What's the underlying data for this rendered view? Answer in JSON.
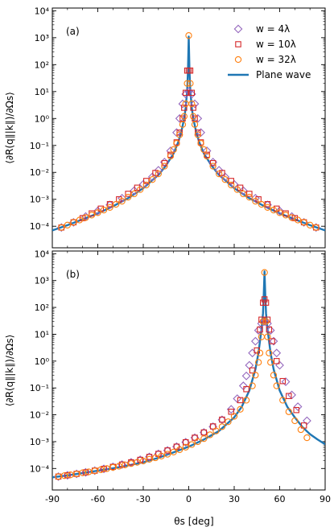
{
  "colors": {
    "w4": "#9467bd",
    "w10": "#d62728",
    "w32": "#ff7f0e",
    "plane": "#1f77b4"
  },
  "chart_data": [
    {
      "type": "scatter",
      "panel_label": "(a)",
      "xlabel": "θs [deg]",
      "ylabel": "⟨∂R(q∥|k∥)/∂Ωs⟩",
      "xlim": [
        -90,
        90
      ],
      "ylim_log10": [
        -4.8,
        4.1
      ],
      "yscale": "log",
      "xticks": [
        "-90",
        "-60",
        "-30",
        "0",
        "30",
        "60",
        "90"
      ],
      "yticks": [
        "10⁻⁴",
        "10⁻³",
        "10⁻²",
        "10⁻¹",
        "10⁰",
        "10¹",
        "10²",
        "10³",
        "10⁴"
      ],
      "legend_position": "top-right",
      "peak_deg": 0,
      "series": [
        {
          "name": "w = 4λ",
          "marker": "diamond",
          "x": [
            -84.0,
            -76.0,
            -68.0,
            -60.0,
            -52.0,
            -44.0,
            -36.0,
            -30.0,
            -24.0,
            -20.0,
            -16.0,
            -12.0,
            -8.0,
            -6.0,
            -4.0,
            -2.0,
            0.0,
            2.0,
            4.0,
            6.0,
            8.0,
            12.0,
            16.0,
            20.0,
            24.0,
            30.0,
            36.0,
            44.0,
            52.0,
            60.0,
            68.0,
            76.0,
            84.0
          ],
          "y": [
            9e-05,
            0.00014,
            0.00023,
            0.00037,
            0.00062,
            0.0011,
            0.0021,
            0.0036,
            0.0068,
            0.012,
            0.024,
            0.063,
            0.3,
            1.0,
            3.5,
            8.0,
            10.0,
            8.0,
            3.5,
            1.0,
            0.3,
            0.063,
            0.024,
            0.012,
            0.0068,
            0.0036,
            0.0021,
            0.0011,
            0.00062,
            0.00037,
            0.00023,
            0.00014,
            9e-05
          ]
        },
        {
          "name": "w = 10λ",
          "marker": "square",
          "x": [
            -84.0,
            -76.0,
            -70.0,
            -64.0,
            -58.0,
            -52.0,
            -46.0,
            -40.0,
            -34.0,
            -28.0,
            -22.0,
            -16.0,
            -12.0,
            -8.0,
            -6.0,
            -4.0,
            -3.0,
            -2.0,
            -1.0,
            0.0,
            1.0,
            2.0,
            3.0,
            4.0,
            6.0,
            8.0,
            12.0,
            16.0,
            22.0,
            28.0,
            34.0,
            40.0,
            46.0,
            52.0,
            58.0,
            64.0,
            70.0,
            76.0,
            84.0
          ],
          "y": [
            9e-05,
            0.00014,
            0.0002,
            0.0003,
            0.00045,
            0.00066,
            0.001,
            0.0016,
            0.0027,
            0.0048,
            0.0095,
            0.022,
            0.045,
            0.13,
            0.3,
            1.0,
            2.5,
            9.0,
            60.0,
            60.0,
            60.0,
            9.0,
            2.5,
            1.0,
            0.3,
            0.13,
            0.045,
            0.022,
            0.0095,
            0.0048,
            0.0027,
            0.0016,
            0.001,
            0.00066,
            0.00045,
            0.0003,
            0.0002,
            0.00014,
            9e-05
          ]
        },
        {
          "name": "w = 32λ",
          "marker": "circle",
          "x": [
            -84.0,
            -80.0,
            -76.0,
            -72.0,
            -68.0,
            -64.0,
            -60.0,
            -56.0,
            -52.0,
            -48.0,
            -44.0,
            -40.0,
            -36.0,
            -32.0,
            -28.0,
            -24.0,
            -20.0,
            -16.0,
            -12.0,
            -10.0,
            -8.0,
            -6.0,
            -4.0,
            -3.0,
            -2.0,
            -1.0,
            0.0,
            1.0,
            2.0,
            3.0,
            4.0,
            6.0,
            8.0,
            10.0,
            12.0,
            16.0,
            20.0,
            24.0,
            28.0,
            32.0,
            36.0,
            40.0,
            44.0,
            48.0,
            52.0,
            56.0,
            60.0,
            64.0,
            68.0,
            72.0,
            76.0,
            80.0,
            84.0
          ],
          "y": [
            9e-05,
            0.00011,
            0.00014,
            0.00017,
            0.00021,
            0.00026,
            0.00032,
            0.0004,
            0.0005,
            0.00065,
            0.00085,
            0.0012,
            0.0016,
            0.0023,
            0.0034,
            0.0054,
            0.0088,
            0.017,
            0.04,
            0.07,
            0.12,
            0.25,
            0.6,
            1.2,
            3.5,
            20.0,
            1200.0,
            20.0,
            3.5,
            1.2,
            0.6,
            0.25,
            0.12,
            0.07,
            0.04,
            0.017,
            0.0088,
            0.0054,
            0.0034,
            0.0023,
            0.0016,
            0.0012,
            0.00085,
            0.00065,
            0.0005,
            0.0004,
            0.00032,
            0.00026,
            0.00021,
            0.00017,
            0.00014,
            0.00011,
            9e-05
          ]
        },
        {
          "name": "Plane wave",
          "marker": "line",
          "x": [
            -90.0,
            -80.0,
            -70.0,
            -60.0,
            -50.0,
            -40.0,
            -30.0,
            -20.0,
            -15.0,
            -10.0,
            -7.0,
            -5.0,
            -3.0,
            -2.0,
            -1.0,
            -0.5,
            0.0,
            0.5,
            1.0,
            2.0,
            3.0,
            5.0,
            7.0,
            10.0,
            15.0,
            20.0,
            30.0,
            40.0,
            50.0,
            60.0,
            70.0,
            80.0,
            90.0
          ],
          "y": [
            7e-05,
            0.00011,
            0.00018,
            0.0003,
            0.00055,
            0.0011,
            0.0026,
            0.008,
            0.018,
            0.05,
            0.13,
            0.3,
            1.0,
            2.5,
            12.0,
            60.0,
            1100.0,
            60.0,
            12.0,
            2.5,
            1.0,
            0.3,
            0.13,
            0.05,
            0.018,
            0.008,
            0.0026,
            0.0011,
            0.00055,
            0.0003,
            0.00018,
            0.00011,
            7e-05
          ]
        }
      ]
    },
    {
      "type": "scatter",
      "panel_label": "(b)",
      "xlabel": "θs [deg]",
      "ylabel": "⟨∂R(q∥|k∥)/∂Ωs⟩",
      "xlim": [
        -90,
        90
      ],
      "ylim_log10": [
        -4.8,
        4.1
      ],
      "yscale": "log",
      "xticks": [
        "-90",
        "-60",
        "-30",
        "0",
        "30",
        "60",
        "90"
      ],
      "yticks": [
        "10⁻⁴",
        "10⁻³",
        "10⁻²",
        "10⁻¹",
        "10⁰",
        "10¹",
        "10²",
        "10³",
        "10⁴"
      ],
      "peak_deg": 50,
      "series": [
        {
          "name": "w = 4λ",
          "marker": "diamond",
          "x": [
            -86.0,
            -80.0,
            -74.0,
            -68.0,
            -62.0,
            -56.0,
            -50.0,
            -44.0,
            -38.0,
            -32.0,
            -26.0,
            -20.0,
            -14.0,
            -8.0,
            -2.0,
            4.0,
            10.0,
            16.0,
            22.0,
            28.0,
            32.0,
            36.0,
            38.0,
            40.0,
            42.0,
            44.0,
            46.0,
            48.0,
            50.0,
            52.0,
            54.0,
            56.0,
            58.0,
            60.0,
            64.0,
            68.0,
            72.0,
            78.0
          ],
          "y": [
            5e-05,
            5.6e-05,
            6.3e-05,
            7.2e-05,
            8.3e-05,
            9.7e-05,
            0.000115,
            0.00014,
            0.00017,
            0.00021,
            0.00027,
            0.00035,
            0.00047,
            0.00065,
            0.00095,
            0.0014,
            0.0022,
            0.0036,
            0.0065,
            0.016,
            0.04,
            0.12,
            0.28,
            0.7,
            2.0,
            5.5,
            14.0,
            25.0,
            30.0,
            25.0,
            14.0,
            5.5,
            2.0,
            0.7,
            0.17,
            0.055,
            0.02,
            0.006
          ]
        },
        {
          "name": "w = 10λ",
          "marker": "square",
          "x": [
            -86.0,
            -80.0,
            -74.0,
            -68.0,
            -62.0,
            -56.0,
            -50.0,
            -44.0,
            -38.0,
            -32.0,
            -26.0,
            -20.0,
            -14.0,
            -8.0,
            -2.0,
            4.0,
            10.0,
            16.0,
            22.0,
            28.0,
            34.0,
            38.0,
            42.0,
            45.0,
            47.0,
            48.0,
            49.0,
            50.0,
            51.0,
            52.0,
            53.0,
            55.0,
            58.0,
            62.0,
            66.0,
            71.0,
            76.0
          ],
          "y": [
            5e-05,
            5.6e-05,
            6.3e-05,
            7.2e-05,
            8.3e-05,
            9.7e-05,
            0.000115,
            0.00014,
            0.00017,
            0.00021,
            0.00027,
            0.00035,
            0.00047,
            0.00065,
            0.00095,
            0.0014,
            0.0022,
            0.0037,
            0.0066,
            0.013,
            0.035,
            0.09,
            0.45,
            2.5,
            15.0,
            35.0,
            150.0,
            200.0,
            150.0,
            35.0,
            15.0,
            5.5,
            1.0,
            0.18,
            0.05,
            0.015,
            0.004
          ]
        },
        {
          "name": "w = 32λ",
          "marker": "circle",
          "x": [
            -86.0,
            -82.0,
            -78.0,
            -74.0,
            -70.0,
            -66.0,
            -62.0,
            -58.0,
            -54.0,
            -50.0,
            -46.0,
            -42.0,
            -38.0,
            -34.0,
            -30.0,
            -26.0,
            -22.0,
            -18.0,
            -14.0,
            -10.0,
            -6.0,
            -2.0,
            2.0,
            6.0,
            10.0,
            14.0,
            18.0,
            22.0,
            26.0,
            30.0,
            34.0,
            38.0,
            42.0,
            44.0,
            46.0,
            47.0,
            48.0,
            49.0,
            50.0,
            51.0,
            52.0,
            53.0,
            54.0,
            56.0,
            58.0,
            62.0,
            66.0,
            70.0,
            74.0,
            78.0
          ],
          "y": [
            5e-05,
            5.4e-05,
            5.8e-05,
            6.3e-05,
            6.9e-05,
            7.5e-05,
            8.2e-05,
            9e-05,
            9.9e-05,
            0.00011,
            0.000122,
            0.000136,
            0.000152,
            0.00017,
            0.00019,
            0.00022,
            0.00025,
            0.00029,
            0.00034,
            0.00041,
            0.0005,
            0.00062,
            0.00078,
            0.001,
            0.0013,
            0.0018,
            0.0025,
            0.0036,
            0.0055,
            0.0088,
            0.016,
            0.035,
            0.12,
            0.3,
            0.9,
            2.0,
            8.0,
            30.0,
            2000.0,
            30.0,
            8.0,
            2.0,
            0.9,
            0.3,
            0.12,
            0.035,
            0.013,
            0.006,
            0.0028,
            0.0014
          ]
        },
        {
          "name": "Plane wave",
          "marker": "line",
          "x": [
            -90.0,
            -80.0,
            -70.0,
            -60.0,
            -50.0,
            -40.0,
            -30.0,
            -20.0,
            -10.0,
            0.0,
            10.0,
            20.0,
            30.0,
            35.0,
            40.0,
            44.0,
            46.0,
            48.0,
            49.0,
            49.5,
            50.0,
            50.5,
            51.0,
            52.0,
            54.0,
            56.0,
            60.0,
            65.0,
            70.0,
            75.0,
            80.0,
            85.0,
            90.0
          ],
          "y": [
            4.7e-05,
            5.5e-05,
            6.8e-05,
            8.3e-05,
            0.000102,
            0.00013,
            0.00017,
            0.00025,
            0.0004,
            0.00065,
            0.0012,
            0.0025,
            0.008,
            0.02,
            0.08,
            0.5,
            2.0,
            15.0,
            60.0,
            300.0,
            2200.0,
            300.0,
            60.0,
            15.0,
            2.0,
            0.5,
            0.08,
            0.02,
            0.008,
            0.0035,
            0.0019,
            0.0012,
            0.0008
          ]
        }
      ]
    }
  ]
}
